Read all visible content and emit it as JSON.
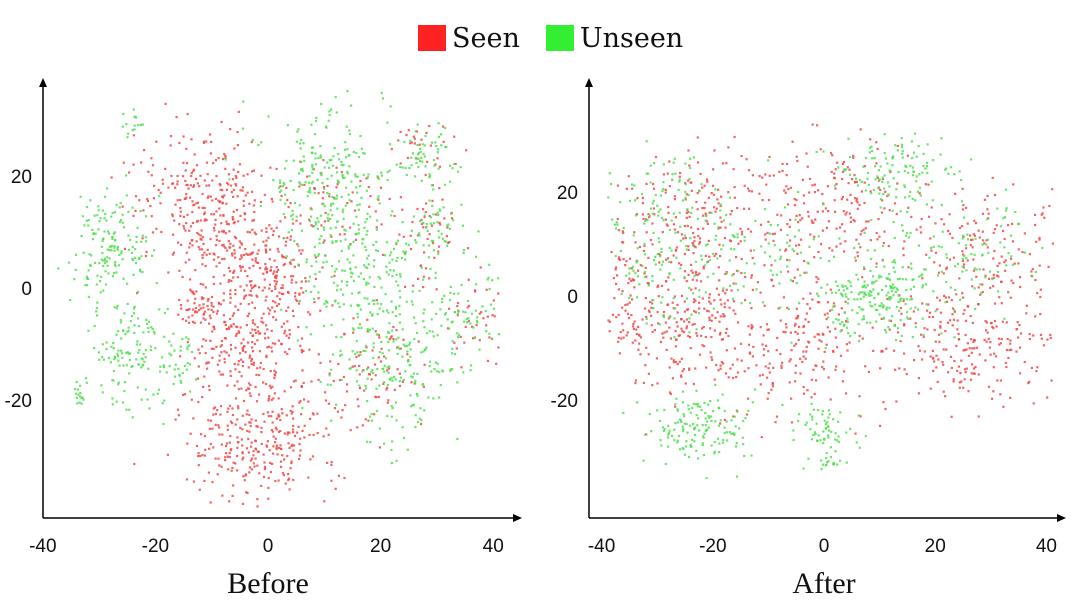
{
  "legend": {
    "items": [
      {
        "label": "Seen",
        "color": "#ff2222"
      },
      {
        "label": "Unseen",
        "color": "#33ee33"
      }
    ]
  },
  "colors": {
    "seen_points": "#ee4a48",
    "unseen_points": "#52e052",
    "axis": "#000000"
  },
  "chart_data": [
    {
      "type": "scatter",
      "title": "Before",
      "xlabel": "",
      "ylabel": "",
      "xlim": [
        -40,
        44
      ],
      "ylim": [
        -40,
        36
      ],
      "x_ticks": [
        "-40",
        "-20",
        "0",
        "20",
        "40"
      ],
      "y_ticks": [
        "20",
        "0",
        "-20"
      ],
      "grid": false,
      "series": [
        {
          "name": "Seen",
          "color": "#ee4a48",
          "clusters": [
            {
              "cx": -11,
              "cy": 15,
              "sx": 6,
              "sy": 7,
              "n": 320
            },
            {
              "cx": 0,
              "cy": 3,
              "sx": 5,
              "sy": 5,
              "n": 200
            },
            {
              "cx": -4,
              "cy": -9,
              "sx": 5,
              "sy": 5,
              "n": 200
            },
            {
              "cx": -2,
              "cy": -26,
              "sx": 7,
              "sy": 6,
              "n": 320
            },
            {
              "cx": -13,
              "cy": -3,
              "sx": 2,
              "sy": 2,
              "n": 45
            },
            {
              "cx": 28,
              "cy": 10,
              "sx": 3,
              "sy": 4,
              "n": 50
            },
            {
              "cx": 28,
              "cy": 24,
              "sx": 3,
              "sy": 3,
              "n": 30
            },
            {
              "cx": 12,
              "cy": 16,
              "sx": 5,
              "sy": 4,
              "n": 60
            },
            {
              "cx": 36,
              "cy": -5,
              "sx": 3,
              "sy": 4,
              "n": 40
            },
            {
              "cx": 18,
              "cy": -14,
              "sx": 5,
              "sy": 6,
              "n": 90
            }
          ]
        },
        {
          "name": "Unseen",
          "color": "#52e052",
          "clusters": [
            {
              "cx": -28,
              "cy": 7,
              "sx": 4,
              "sy": 5,
              "n": 160
            },
            {
              "cx": -24,
              "cy": -12,
              "sx": 4,
              "sy": 5,
              "n": 140
            },
            {
              "cx": -24,
              "cy": 29,
              "sx": 1,
              "sy": 1.2,
              "n": 15
            },
            {
              "cx": -34,
              "cy": -19,
              "sx": 1,
              "sy": 1,
              "n": 15
            },
            {
              "cx": -15,
              "cy": -13,
              "sx": 1.2,
              "sy": 2.5,
              "n": 20
            },
            {
              "cx": 10,
              "cy": 20,
              "sx": 6,
              "sy": 6,
              "n": 220
            },
            {
              "cx": 16,
              "cy": 3,
              "sx": 6,
              "sy": 6,
              "n": 200
            },
            {
              "cx": 22,
              "cy": -14,
              "sx": 6,
              "sy": 7,
              "n": 200
            },
            {
              "cx": 28,
              "cy": 24,
              "sx": 3,
              "sy": 3,
              "n": 55
            },
            {
              "cx": 30,
              "cy": 10,
              "sx": 3,
              "sy": 4,
              "n": 55
            },
            {
              "cx": 36,
              "cy": -5,
              "sx": 4,
              "sy": 4,
              "n": 60
            }
          ]
        }
      ]
    },
    {
      "type": "scatter",
      "title": "After",
      "xlabel": "",
      "ylabel": "",
      "xlim": [
        -41,
        44
      ],
      "ylim": [
        -40,
        35
      ],
      "x_ticks": [
        "-40",
        "-20",
        "0",
        "20",
        "40"
      ],
      "y_ticks": [
        "20",
        "0",
        "-20"
      ],
      "grid": false,
      "series": [
        {
          "name": "Seen",
          "color": "#ee4a48",
          "clusters": [
            {
              "cx": -22,
              "cy": 15,
              "sx": 8,
              "sy": 7,
              "n": 220
            },
            {
              "cx": 2,
              "cy": 18,
              "sx": 7,
              "sy": 6,
              "n": 180
            },
            {
              "cx": -26,
              "cy": -6,
              "sx": 7,
              "sy": 7,
              "n": 220
            },
            {
              "cx": -5,
              "cy": -8,
              "sx": 7,
              "sy": 7,
              "n": 200
            },
            {
              "cx": 26,
              "cy": -9,
              "sx": 8,
              "sy": 6,
              "n": 240
            },
            {
              "cx": 28,
              "cy": 10,
              "sx": 7,
              "sy": 6,
              "n": 140
            },
            {
              "cx": -36,
              "cy": 0,
              "sx": 3,
              "sy": 6,
              "n": 60
            }
          ]
        },
        {
          "name": "Unseen",
          "color": "#52e052",
          "clusters": [
            {
              "cx": 10,
              "cy": 0,
              "sx": 5,
              "sy": 3.5,
              "n": 200
            },
            {
              "cx": -22,
              "cy": -25,
              "sx": 5,
              "sy": 3,
              "n": 150
            },
            {
              "cx": 0,
              "cy": -25,
              "sx": 3,
              "sy": 2.5,
              "n": 60
            },
            {
              "cx": 1,
              "cy": -32,
              "sx": 1.3,
              "sy": 1,
              "n": 18
            },
            {
              "cx": 12,
              "cy": 24,
              "sx": 6,
              "sy": 4,
              "n": 120
            },
            {
              "cx": -30,
              "cy": 5,
              "sx": 5,
              "sy": 6,
              "n": 100
            },
            {
              "cx": -12,
              "cy": 8,
              "sx": 7,
              "sy": 6,
              "n": 100
            },
            {
              "cx": 24,
              "cy": 8,
              "sx": 7,
              "sy": 6,
              "n": 100
            },
            {
              "cx": -30,
              "cy": 20,
              "sx": 6,
              "sy": 5,
              "n": 70
            }
          ]
        }
      ]
    }
  ]
}
